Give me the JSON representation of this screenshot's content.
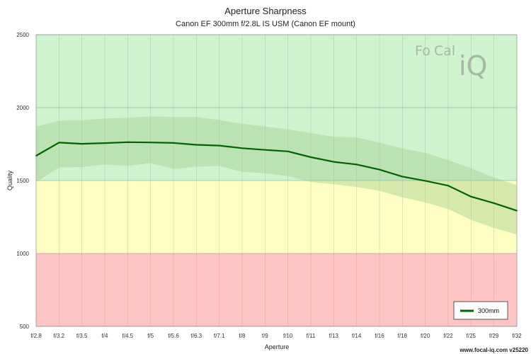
{
  "chart_data": {
    "type": "line",
    "title": "Aperture Sharpness",
    "subtitle": "Canon EF 300mm f/2.8L IS USM (Canon EF mount)",
    "xlabel": "Aperture",
    "ylabel": "Quality",
    "categories": [
      "f/2.8",
      "f/3.2",
      "f/3.5",
      "f/4",
      "f/4.5",
      "f/5",
      "f/5.6",
      "f/6.3",
      "f/7.1",
      "f/8",
      "f/9",
      "f/10",
      "f/11",
      "f/13",
      "f/14",
      "f/16",
      "f/18",
      "f/20",
      "f/22",
      "f/25",
      "f/29",
      "f/32"
    ],
    "ylim": [
      500,
      2500
    ],
    "yticks": [
      500,
      1000,
      1500,
      2000,
      2500
    ],
    "zones": [
      {
        "from": 500,
        "to": 1000,
        "color": "#ffc4c4"
      },
      {
        "from": 1000,
        "to": 1500,
        "color": "#ffffc4"
      },
      {
        "from": 1500,
        "to": 2500,
        "color": "#cff2cf"
      }
    ],
    "series": [
      {
        "name": "300mm",
        "color": "#006400",
        "values": [
          1670,
          1760,
          1752,
          1757,
          1763,
          1761,
          1758,
          1745,
          1740,
          1722,
          1710,
          1700,
          1660,
          1628,
          1610,
          1575,
          1527,
          1498,
          1465,
          1390,
          1345,
          1293
        ],
        "upper": [
          1870,
          1910,
          1912,
          1925,
          1930,
          1940,
          1935,
          1935,
          1915,
          1890,
          1870,
          1850,
          1825,
          1800,
          1795,
          1760,
          1720,
          1690,
          1640,
          1585,
          1520,
          1470
        ],
        "lower": [
          1490,
          1590,
          1592,
          1610,
          1600,
          1620,
          1580,
          1595,
          1600,
          1560,
          1550,
          1530,
          1490,
          1475,
          1455,
          1430,
          1385,
          1350,
          1305,
          1230,
          1175,
          1130
        ]
      }
    ],
    "legend": {
      "position": "bottom-right"
    },
    "grid": true
  },
  "logo": {
    "text_a": "Fo",
    "text_b": "Cal",
    "text_c": "iQ"
  },
  "credit": "www.focal-iq.com  v25220",
  "colors": {
    "line": "#006400",
    "band": "#9fcf8f"
  }
}
